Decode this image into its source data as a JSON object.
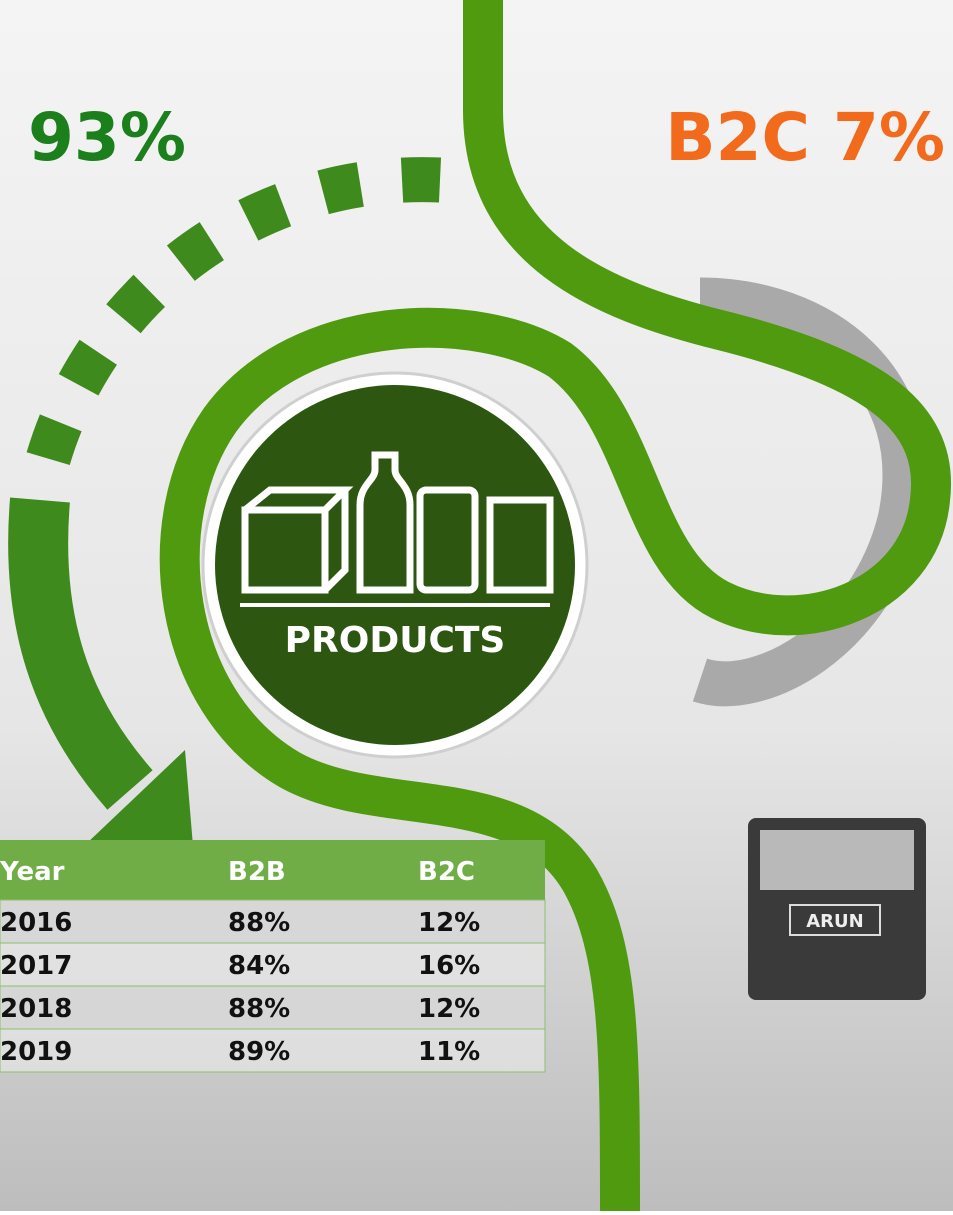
{
  "labels": {
    "b2b_share": "93%",
    "b2c_share": "B2C 7%",
    "center": "PRODUCTS",
    "package_brand": "ARUN"
  },
  "table": {
    "header": [
      "Year",
      "B2B",
      "B2C"
    ],
    "rows": [
      [
        "2016",
        "88%",
        "12%"
      ],
      [
        "2017",
        "84%",
        "16%"
      ],
      [
        "2018",
        "88%",
        "12%"
      ],
      [
        "2019",
        "89%",
        "11%"
      ]
    ]
  }
}
